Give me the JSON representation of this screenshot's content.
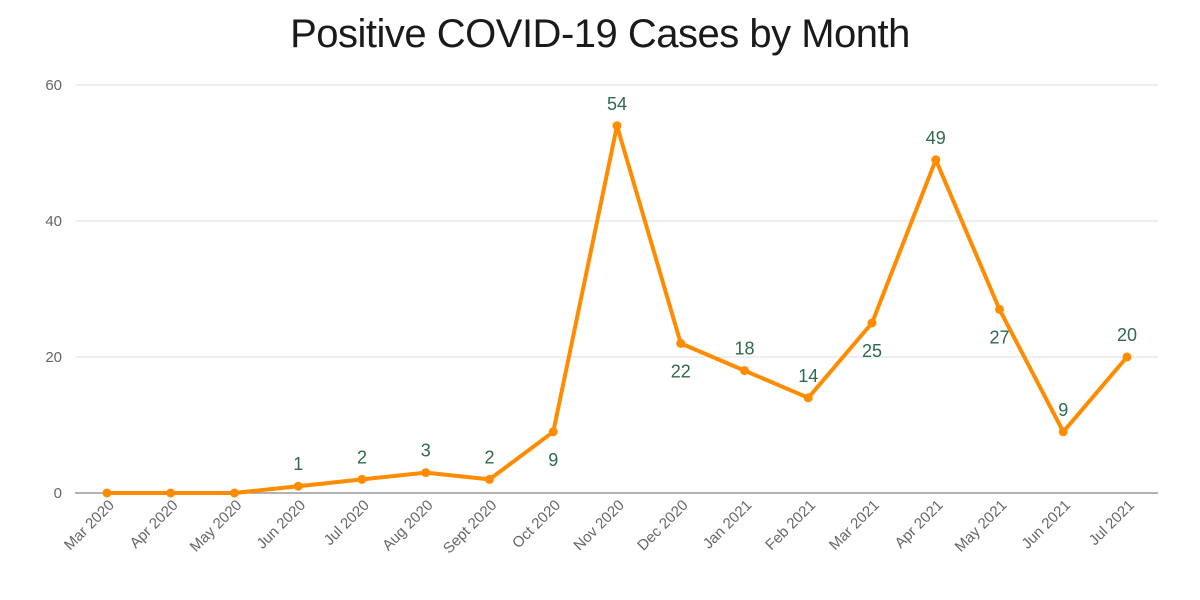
{
  "chart_data": {
    "type": "line",
    "title": "Positive COVID-19 Cases by Month",
    "xlabel": "",
    "ylabel": "",
    "ylim": [
      0,
      60
    ],
    "yticks": [
      0,
      20,
      40,
      60
    ],
    "grid": true,
    "categories": [
      "Mar 2020",
      "Apr 2020",
      "May 2020",
      "Jun 2020",
      "Jul 2020",
      "Aug 2020",
      "Sept 2020",
      "Oct 2020",
      "Nov 2020",
      "Dec 2020",
      "Jan 2021",
      "Feb 2021",
      "Mar 2021",
      "Apr 2021",
      "May 2021",
      "Jun 2021",
      "Jul 2021"
    ],
    "series": [
      {
        "values": [
          0,
          0,
          0,
          1,
          2,
          3,
          2,
          9,
          54,
          22,
          18,
          14,
          25,
          49,
          27,
          9,
          20
        ],
        "color": "#ff8c00",
        "label_color": "#2e6b4a",
        "data_labels": [
          "",
          "",
          "",
          "1",
          "2",
          "3",
          "2",
          "9",
          "54",
          "22",
          "18",
          "14",
          "25",
          "49",
          "27",
          "9",
          "20"
        ],
        "label_positions": [
          "above",
          "above",
          "above",
          "above",
          "above",
          "above",
          "above",
          "below",
          "above",
          "below",
          "above",
          "above",
          "below",
          "above",
          "below",
          "above",
          "above"
        ]
      }
    ]
  }
}
